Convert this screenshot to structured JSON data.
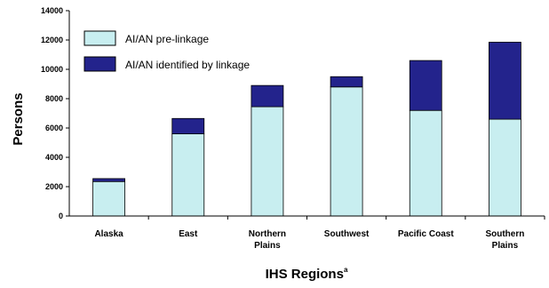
{
  "chart_data": {
    "type": "bar",
    "stacked": true,
    "categories": [
      [
        "Alaska"
      ],
      [
        "East"
      ],
      [
        "Northern",
        "Plains"
      ],
      [
        "Southwest"
      ],
      [
        "Pacific Coast"
      ],
      [
        "Southern",
        "Plains"
      ]
    ],
    "series": [
      {
        "name": "AI/AN pre-linkage",
        "color": "#c8eef0",
        "values": [
          2350,
          5600,
          7450,
          8800,
          7200,
          6600
        ]
      },
      {
        "name": "AI/AN identified by linkage",
        "color": "#23238c",
        "values": [
          200,
          1050,
          1450,
          700,
          3400,
          5250
        ]
      }
    ],
    "xlabel": "IHS Regions",
    "xlabel_superscript": "a",
    "ylabel": "Persons",
    "ylim": [
      0,
      14000
    ],
    "yticks": [
      0,
      2000,
      4000,
      6000,
      8000,
      10000,
      12000,
      14000
    ],
    "grid": false,
    "legend": "top-left"
  }
}
